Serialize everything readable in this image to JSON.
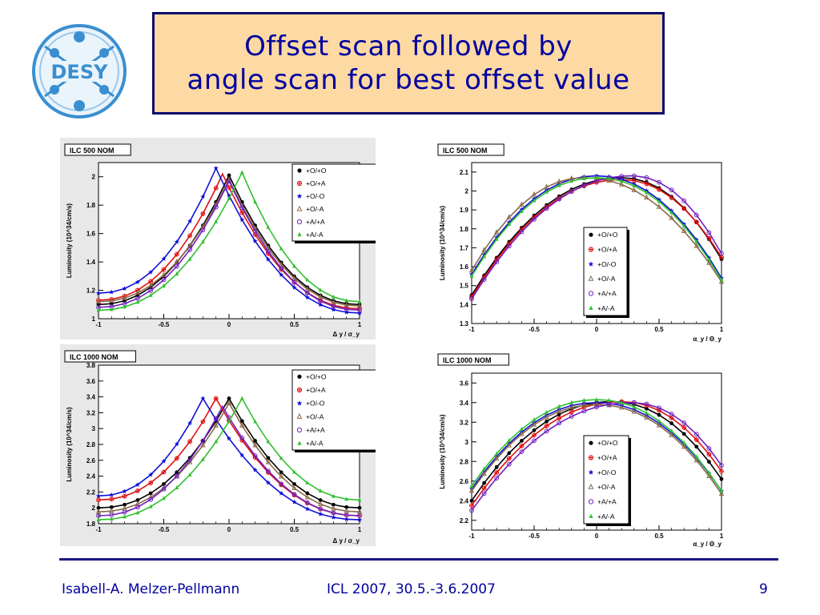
{
  "slide": {
    "title_line1": "Offset scan followed by",
    "title_line2": "angle scan for best offset value",
    "logo_text": "DESY",
    "footer_author": "Isabell-A. Melzer-Pellmann",
    "footer_event": "ICL 2007, 30.5.-3.6.2007",
    "page_number": "9"
  },
  "colors": {
    "title_bg": "#fdd9a3",
    "title_text": "#0000a0",
    "frame": "#0a0a6e",
    "logo": "#3a8fd0"
  },
  "chart_data": [
    {
      "type": "line",
      "title": "ILC 500 NOM",
      "xlabel": "Δ y / σ_y",
      "ylabel": "Luminosity (10^34/cm/s)",
      "xlim": [
        -1,
        1
      ],
      "ylim": [
        1,
        2.1
      ],
      "xticks": [
        -1,
        -0.5,
        0,
        0.5,
        1
      ],
      "xtick_labels": [
        "-1",
        "-0.5",
        "0",
        "0.5",
        "1"
      ],
      "yticks": [
        1,
        1.2,
        1.4,
        1.6,
        1.8,
        2
      ],
      "ytick_labels": [
        "1",
        "1.2",
        "1.4",
        "1.6",
        "1.8",
        "2"
      ],
      "shape": "cusp",
      "legend_position": "top-right",
      "series": [
        {
          "name": "+O/+O",
          "peak_x": 0.0,
          "peak_y": 2.01,
          "left_y": 1.1,
          "right_y": 1.1
        },
        {
          "name": "+O/+A",
          "peak_x": -0.05,
          "peak_y": 2.02,
          "left_y": 1.13,
          "right_y": 1.07
        },
        {
          "name": "+O/-O",
          "peak_x": -0.1,
          "peak_y": 2.06,
          "left_y": 1.18,
          "right_y": 1.04
        },
        {
          "name": "+O/-A",
          "peak_x": 0.0,
          "peak_y": 1.98,
          "left_y": 1.12,
          "right_y": 1.09
        },
        {
          "name": "+A/+A",
          "peak_x": 0.0,
          "peak_y": 1.97,
          "left_y": 1.08,
          "right_y": 1.06
        },
        {
          "name": "+A/-A",
          "peak_x": 0.1,
          "peak_y": 2.03,
          "left_y": 1.06,
          "right_y": 1.12
        }
      ]
    },
    {
      "type": "line",
      "title": "ILC 500 NOM",
      "xlabel": "α_y / Θ_y",
      "ylabel": "Luminosity (10^34/cm/s)",
      "xlim": [
        -1,
        1
      ],
      "ylim": [
        1.3,
        2.15
      ],
      "xticks": [
        -1,
        -0.5,
        0,
        0.5,
        1
      ],
      "xtick_labels": [
        "-1",
        "-0.5",
        "0",
        "0.5",
        "1"
      ],
      "yticks": [
        1.3,
        1.4,
        1.5,
        1.6,
        1.7,
        1.8,
        1.9,
        2,
        2.1
      ],
      "ytick_labels": [
        "1.3",
        "1.4",
        "1.5",
        "1.6",
        "1.7",
        "1.8",
        "1.9",
        "2",
        "2.1"
      ],
      "shape": "smooth",
      "legend_position": "bottom-center",
      "series": [
        {
          "name": "+O/+O",
          "peak_x": 0.2,
          "peak_y": 2.07,
          "left_y": 1.45,
          "right_y": 1.64
        },
        {
          "name": "+O/+A",
          "peak_x": 0.2,
          "peak_y": 2.06,
          "left_y": 1.44,
          "right_y": 1.65
        },
        {
          "name": "+O/-O",
          "peak_x": 0.0,
          "peak_y": 2.08,
          "left_y": 1.56,
          "right_y": 1.54
        },
        {
          "name": "+O/-A",
          "peak_x": -0.1,
          "peak_y": 2.07,
          "left_y": 1.58,
          "right_y": 1.52
        },
        {
          "name": "+A/+A",
          "peak_x": 0.28,
          "peak_y": 2.08,
          "left_y": 1.43,
          "right_y": 1.67
        },
        {
          "name": "+A/-A",
          "peak_x": 0.0,
          "peak_y": 2.07,
          "left_y": 1.55,
          "right_y": 1.53
        }
      ]
    },
    {
      "type": "line",
      "title": "ILC 1000 NOM",
      "xlabel": "Δ y / σ_y",
      "ylabel": "Luminosity (10^34/cm/s)",
      "xlim": [
        -1,
        1
      ],
      "ylim": [
        1.8,
        3.8
      ],
      "xticks": [
        -1,
        -0.5,
        0,
        0.5,
        1
      ],
      "xtick_labels": [
        "-1",
        "-0.5",
        "0",
        "0.5",
        "1"
      ],
      "yticks": [
        1.8,
        2,
        2.2,
        2.4,
        2.6,
        2.8,
        3,
        3.2,
        3.4,
        3.6,
        3.8
      ],
      "ytick_labels": [
        "1.8",
        "2",
        "2.2",
        "2.4",
        "2.6",
        "2.8",
        "3",
        "3.2",
        "3.4",
        "3.6",
        "3.8"
      ],
      "shape": "cusp",
      "legend_position": "top-right",
      "series": [
        {
          "name": "+O/+O",
          "peak_x": 0.0,
          "peak_y": 3.38,
          "left_y": 2.0,
          "right_y": 2.0
        },
        {
          "name": "+O/+A",
          "peak_x": -0.1,
          "peak_y": 3.38,
          "left_y": 2.1,
          "right_y": 1.9
        },
        {
          "name": "+O/-O",
          "peak_x": -0.2,
          "peak_y": 3.38,
          "left_y": 2.15,
          "right_y": 1.85
        },
        {
          "name": "+O/-A",
          "peak_x": 0.0,
          "peak_y": 3.32,
          "left_y": 1.95,
          "right_y": 1.95
        },
        {
          "name": "+A/+A",
          "peak_x": -0.05,
          "peak_y": 3.28,
          "left_y": 1.9,
          "right_y": 1.9
        },
        {
          "name": "+A/-A",
          "peak_x": 0.1,
          "peak_y": 3.38,
          "left_y": 1.85,
          "right_y": 2.1
        }
      ]
    },
    {
      "type": "line",
      "title": "ILC 1000 NOM",
      "xlabel": "α_y / Θ_y",
      "ylabel": "Luminosity (10^34/cm/s)",
      "xlim": [
        -1,
        1
      ],
      "ylim": [
        2.1,
        3.7
      ],
      "xticks": [
        -1,
        -0.5,
        0,
        0.5,
        1
      ],
      "xtick_labels": [
        "-1",
        "-0.5",
        "0",
        "0.5",
        "1"
      ],
      "yticks": [
        2.2,
        2.4,
        2.6,
        2.8,
        3,
        3.2,
        3.4,
        3.6
      ],
      "ytick_labels": [
        "2.2",
        "2.4",
        "2.6",
        "2.8",
        "3",
        "3.2",
        "3.4",
        "3.6"
      ],
      "shape": "smooth",
      "legend_position": "bottom-right",
      "series": [
        {
          "name": "+O/+O",
          "peak_x": 0.12,
          "peak_y": 3.41,
          "left_y": 2.4,
          "right_y": 2.62
        },
        {
          "name": "+O/+A",
          "peak_x": 0.2,
          "peak_y": 3.41,
          "left_y": 2.35,
          "right_y": 2.7
        },
        {
          "name": "+O/-O",
          "peak_x": 0.0,
          "peak_y": 3.4,
          "left_y": 2.52,
          "right_y": 2.5
        },
        {
          "name": "+O/-A",
          "peak_x": 0.0,
          "peak_y": 3.38,
          "left_y": 2.5,
          "right_y": 2.47
        },
        {
          "name": "+A/+A",
          "peak_x": 0.28,
          "peak_y": 3.4,
          "left_y": 2.3,
          "right_y": 2.76
        },
        {
          "name": "+A/-A",
          "peak_x": 0.0,
          "peak_y": 3.43,
          "left_y": 2.55,
          "right_y": 2.5
        }
      ]
    }
  ],
  "series_style": [
    {
      "color": "#000000",
      "marker": "dot"
    },
    {
      "color": "#e01010",
      "marker": "crosscircle"
    },
    {
      "color": "#1010d8",
      "marker": "star"
    },
    {
      "color": "#8a6a4a",
      "marker": "triangle-open"
    },
    {
      "color": "#7020c0",
      "marker": "circle-open"
    },
    {
      "color": "#30c030",
      "marker": "triangle"
    }
  ]
}
